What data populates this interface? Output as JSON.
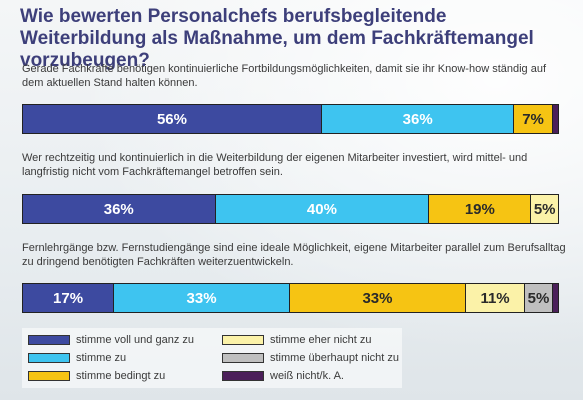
{
  "title": "Wie bewerten Personalchefs berufsbegleitende Weiterbildung als Maßnahme, um dem Fachkräftemangel vorzubeugen?",
  "colors": {
    "voll": "#3d4aa0",
    "zu": "#3ec4f0",
    "bedingt": "#f6c413",
    "eher_nicht": "#fbf2a8",
    "ueberhaupt_nicht": "#bfbfbf",
    "weiss_nicht": "#4b1f5a"
  },
  "chart_data": {
    "type": "bar",
    "stacked": true,
    "orientation": "horizontal",
    "unit": "%",
    "categories": [
      "Gerade Fachkräfte benötigen kontinuierliche Fortbildungsmöglichkeiten, damit sie ihr Know-how ständig auf dem aktuellen Stand halten können.",
      "Wer rechtzeitig und kontinuierlich in die Weiterbildung der eigenen Mitarbeiter investiert, wird mittel- und langfristig nicht vom Fachkräftemangel betroffen sein.",
      "Fernlehrgänge bzw. Fernstudiengänge sind eine ideale Möglichkeit, eigene Mitarbeiter parallel zum Berufsalltag zu dringend benötigten Fachkräften weiterzuentwickeln."
    ],
    "series": [
      {
        "name": "stimme voll und ganz zu",
        "key": "voll",
        "values": [
          56,
          36,
          17
        ],
        "labels": [
          "56%",
          "36%",
          "17%"
        ],
        "text_color": "#ffffff"
      },
      {
        "name": "stimme zu",
        "key": "zu",
        "values": [
          36,
          40,
          33
        ],
        "labels": [
          "36%",
          "40%",
          "33%"
        ],
        "text_color": "#ffffff"
      },
      {
        "name": "stimme bedingt zu",
        "key": "bedingt",
        "values": [
          7,
          19,
          33
        ],
        "labels": [
          "7%",
          "19%",
          "33%"
        ],
        "text_color": "#2a2a2a"
      },
      {
        "name": "stimme eher nicht zu",
        "key": "eher_nicht",
        "values": [
          0,
          5,
          11
        ],
        "labels": [
          "",
          "5%",
          "11%"
        ],
        "text_color": "#2a2a2a"
      },
      {
        "name": "stimme überhaupt nicht zu",
        "key": "ueberhaupt_nicht",
        "values": [
          0,
          0,
          5
        ],
        "labels": [
          "",
          "",
          "5%"
        ],
        "text_color": "#2a2a2a"
      },
      {
        "name": "weiß nicht/k. A.",
        "key": "weiss_nicht",
        "values": [
          1,
          0,
          1
        ],
        "labels": [
          "",
          "",
          ""
        ],
        "text_color": "#ffffff"
      }
    ],
    "legend_position": "bottom-left",
    "grid": false
  }
}
